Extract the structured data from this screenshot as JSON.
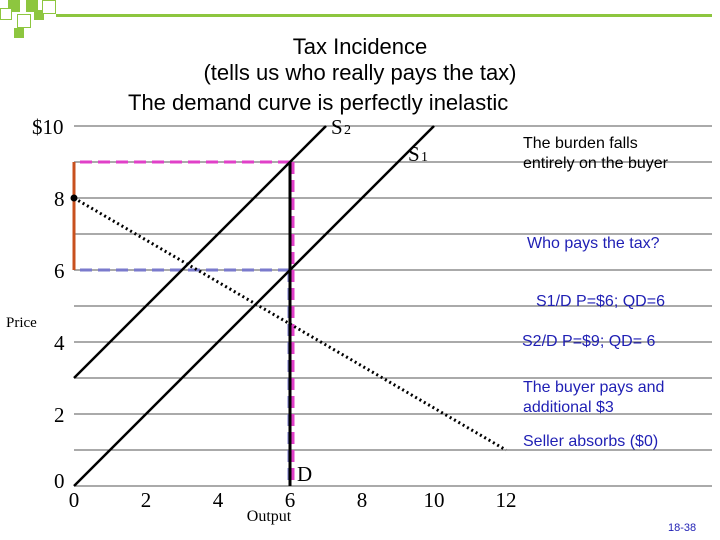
{
  "slide": {
    "title_line1": "Tax Incidence",
    "title_line2": "(tells us who really pays the tax)",
    "subtitle": "The demand curve is perfectly inelastic",
    "slide_number": "18-38"
  },
  "notes": {
    "burden_line1": "The burden falls",
    "burden_line2": "entirely on the buyer",
    "question": "Who pays the tax?",
    "eq1": "S1/D P=$6; QD=6",
    "eq2": "S2/D P=$9; QD= 6",
    "buyer_line1": "The buyer pays and",
    "buyer_line2": "additional $3",
    "seller": "Seller absorbs ($0)"
  },
  "colors": {
    "accent_green": "#8DC63F",
    "note_blue": "#1F1FB4",
    "pink_dash": "#E040C8",
    "grey_dash": "#7A7ACC",
    "tax_bar": "#C8501E",
    "curve": "#000000"
  },
  "chart_data": {
    "type": "line",
    "xlabel": "Output",
    "ylabel": "Price",
    "x_ticks": [
      "0",
      "2",
      "4",
      "6",
      "8",
      "10",
      "12"
    ],
    "y_ticks": [
      "$10",
      "8",
      "6",
      "4",
      "2",
      "0"
    ],
    "xlim": [
      0,
      12
    ],
    "ylim": [
      0,
      10
    ],
    "series": [
      {
        "name": "S1",
        "points": [
          [
            0,
            0
          ],
          [
            10,
            10
          ]
        ]
      },
      {
        "name": "S2",
        "points": [
          [
            0,
            3
          ],
          [
            7,
            10
          ]
        ]
      },
      {
        "name": "D",
        "points": [
          [
            6,
            0
          ],
          [
            6,
            9
          ]
        ]
      },
      {
        "name": "",
        "points": [
          [
            0,
            8
          ],
          [
            12,
            1
          ]
        ]
      }
    ],
    "equilibria": [
      {
        "label": "S1/D",
        "price": 6,
        "quantity": 6
      },
      {
        "label": "S2/D",
        "price": 9,
        "quantity": 6
      }
    ],
    "tax_range": [
      6,
      9
    ]
  }
}
